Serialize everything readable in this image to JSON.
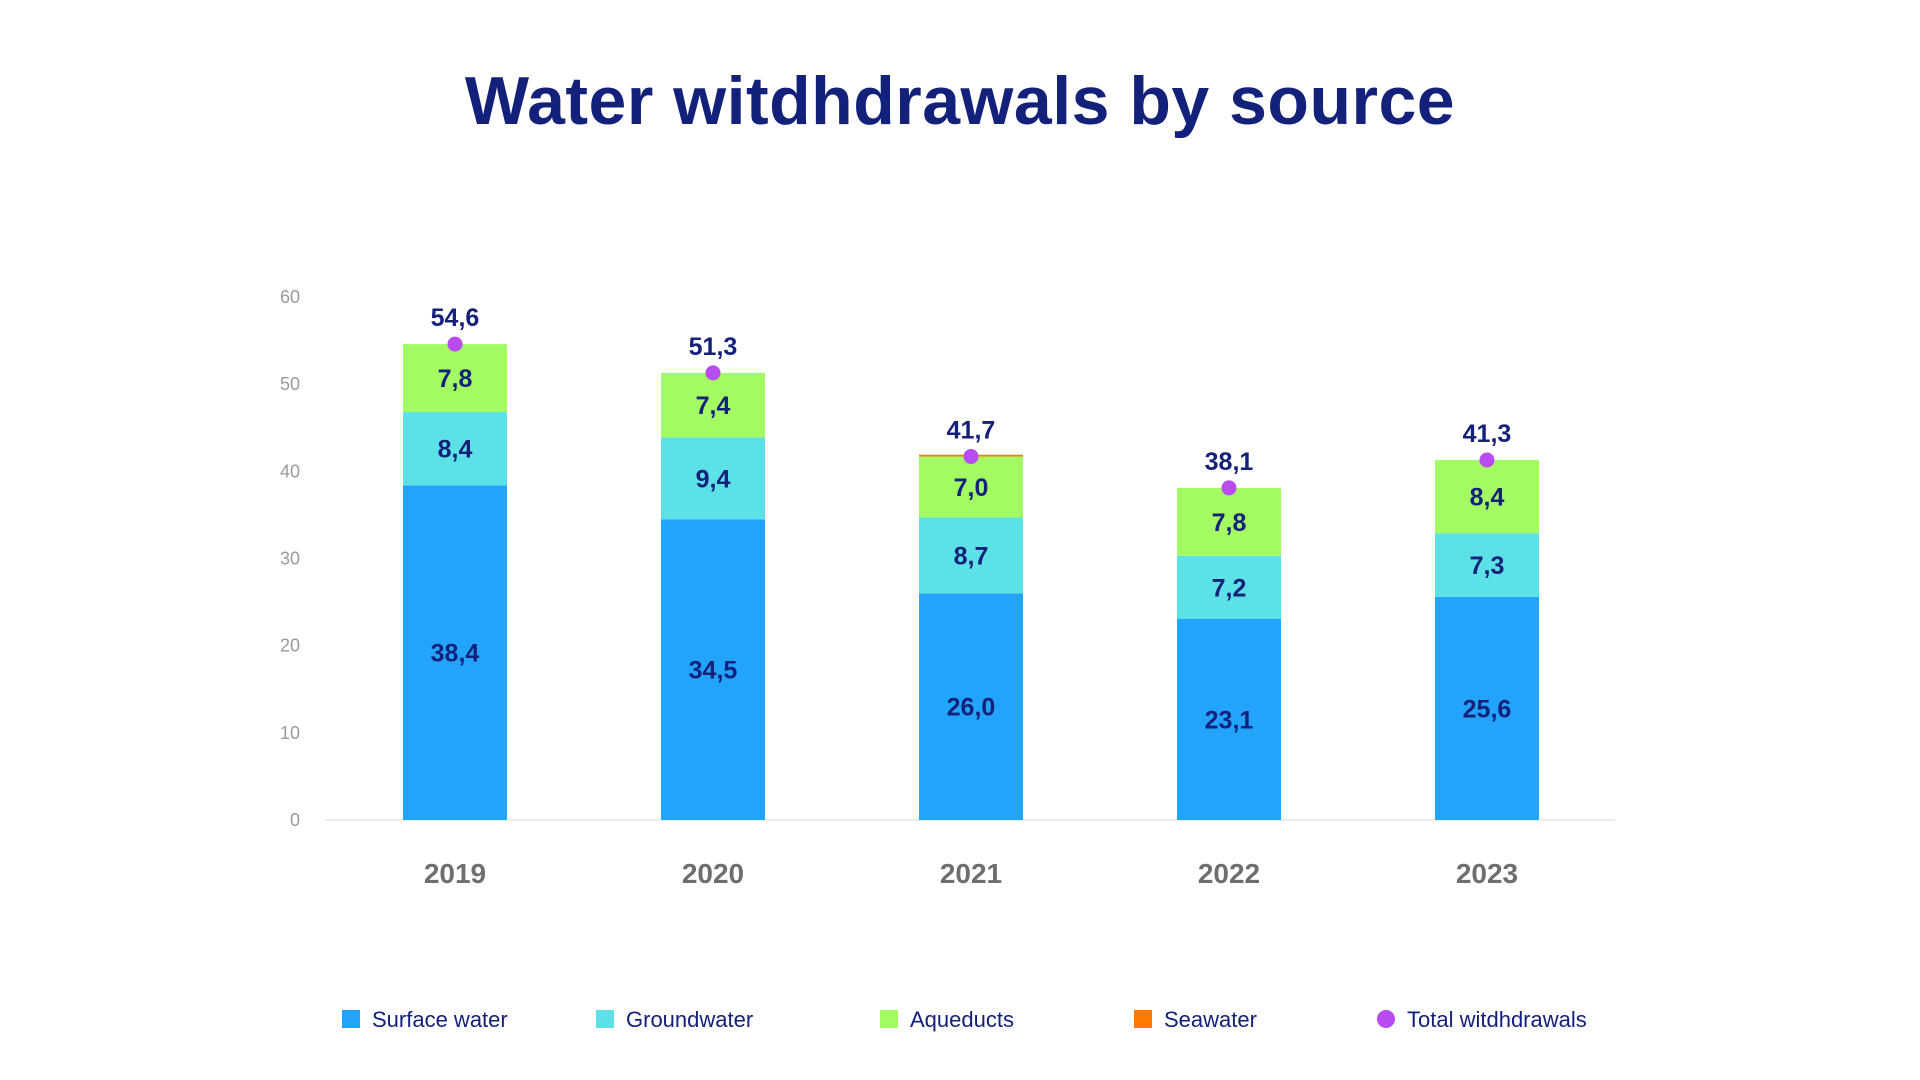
{
  "chart_data": {
    "type": "bar",
    "stacked": true,
    "title": "Water witdhdrawals by source",
    "xlabel": "",
    "ylabel": "",
    "ylim": [
      0,
      60
    ],
    "yticks": [
      "0",
      "10",
      "20",
      "30",
      "40",
      "50",
      "60"
    ],
    "grid": false,
    "legend_position": "bottom",
    "categories": [
      "2019",
      "2020",
      "2021",
      "2022",
      "2023"
    ],
    "series": [
      {
        "name": "Surface water",
        "color": "#22a4fb",
        "values": [
          38.4,
          34.5,
          26.0,
          23.1,
          25.6
        ],
        "labels": [
          "38,4",
          "34,5",
          "26,0",
          "23,1",
          "25,6"
        ]
      },
      {
        "name": "Groundwater",
        "color": "#5ce1e6",
        "values": [
          8.4,
          9.4,
          8.7,
          7.2,
          7.3
        ],
        "labels": [
          "8,4",
          "9,4",
          "8,7",
          "7,2",
          "7,3"
        ]
      },
      {
        "name": "Aqueducts",
        "color": "#a3fa63",
        "values": [
          7.8,
          7.4,
          7.0,
          7.8,
          8.4
        ],
        "labels": [
          "7,8",
          "7,4",
          "7,0",
          "7,8",
          "8,4"
        ]
      },
      {
        "name": "Seawater",
        "color": "#ff7a00",
        "values": [
          0,
          0,
          0.2,
          0,
          0
        ],
        "labels": [
          "",
          "",
          "",
          "",
          ""
        ]
      }
    ],
    "totals": {
      "name": "Total witdhdrawals",
      "color": "#b84cf0",
      "values": [
        54.6,
        51.3,
        41.7,
        38.1,
        41.3
      ],
      "labels": [
        "54,6",
        "51,3",
        "41,7",
        "38,1",
        "41,3"
      ]
    }
  }
}
